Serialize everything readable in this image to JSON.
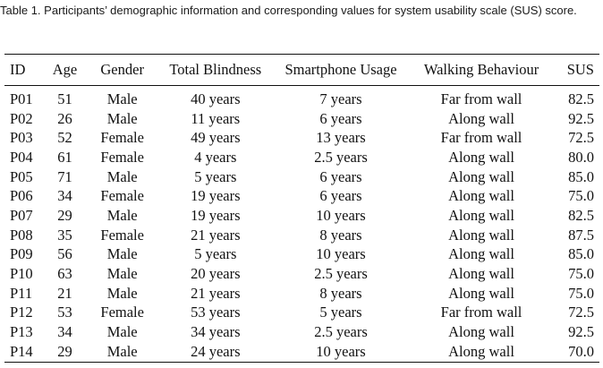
{
  "caption": {
    "label": "Table 1.",
    "text": "Participants’ demographic information and corresponding values for system usability scale (SUS) score."
  },
  "table": {
    "headers": [
      "ID",
      "Age",
      "Gender",
      "Total Blindness",
      "Smartphone Usage",
      "Walking Behaviour",
      "SUS"
    ],
    "rows": [
      [
        "P01",
        "51",
        "Male",
        "40 years",
        "7 years",
        "Far from wall",
        "82.5"
      ],
      [
        "P02",
        "26",
        "Male",
        "11 years",
        "6 years",
        "Along wall",
        "92.5"
      ],
      [
        "P03",
        "52",
        "Female",
        "49 years",
        "13 years",
        "Far from wall",
        "72.5"
      ],
      [
        "P04",
        "61",
        "Female",
        "4 years",
        "2.5 years",
        "Along wall",
        "80.0"
      ],
      [
        "P05",
        "71",
        "Male",
        "5 years",
        "6 years",
        "Along wall",
        "85.0"
      ],
      [
        "P06",
        "34",
        "Female",
        "19 years",
        "6 years",
        "Along wall",
        "75.0"
      ],
      [
        "P07",
        "29",
        "Male",
        "19 years",
        "10 years",
        "Along wall",
        "82.5"
      ],
      [
        "P08",
        "35",
        "Female",
        "21 years",
        "8 years",
        "Along wall",
        "87.5"
      ],
      [
        "P09",
        "56",
        "Male",
        "5 years",
        "10 years",
        "Along wall",
        "85.0"
      ],
      [
        "P10",
        "63",
        "Male",
        "20 years",
        "2.5 years",
        "Along wall",
        "75.0"
      ],
      [
        "P11",
        "21",
        "Male",
        "21 years",
        "8 years",
        "Along wall",
        "75.0"
      ],
      [
        "P12",
        "53",
        "Female",
        "53 years",
        "5 years",
        "Far from wall",
        "72.5"
      ],
      [
        "P13",
        "34",
        "Male",
        "34 years",
        "2.5 years",
        "Along wall",
        "92.5"
      ],
      [
        "P14",
        "29",
        "Male",
        "24 years",
        "10 years",
        "Along wall",
        "70.0"
      ]
    ]
  }
}
